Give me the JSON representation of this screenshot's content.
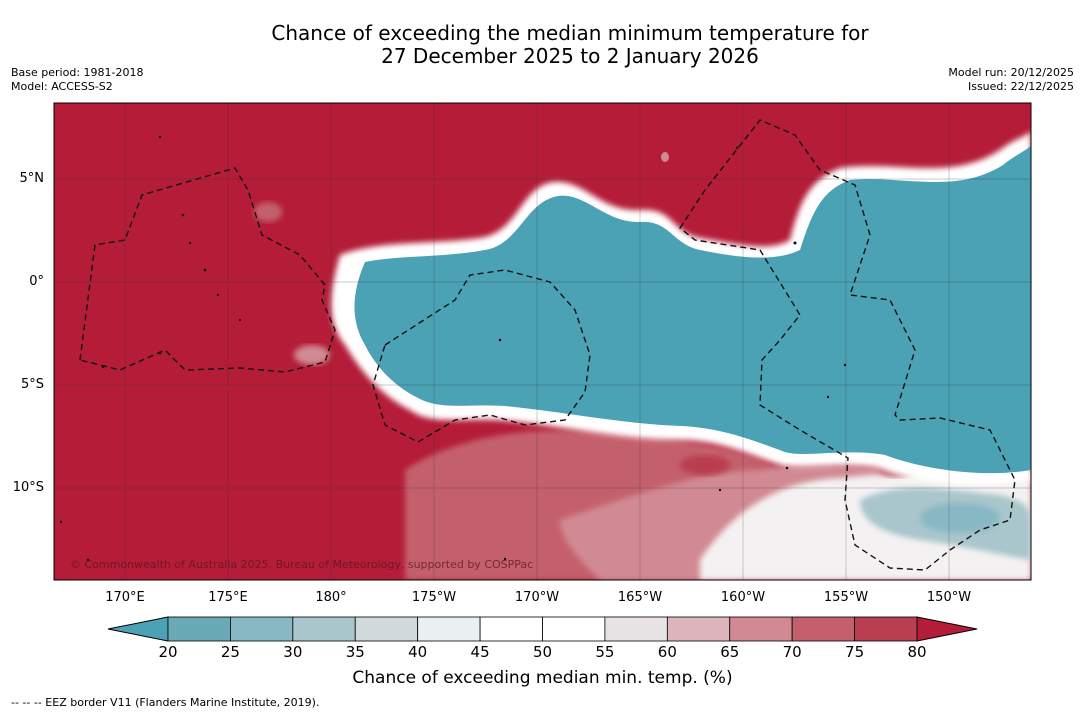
{
  "title_line1": "Chance of exceeding the median minimum temperature for",
  "title_line2": "27 December 2025 to 2 January 2026",
  "base_period": "Base period: 1981-2018",
  "model": "Model: ACCESS-S2",
  "model_run": "Model run: 20/12/2025",
  "issued": "Issued: 22/12/2025",
  "copyright": "© Commonwealth of Australia 2025, Bureau of Meteorology, supported by COSPPac",
  "footer_legend": "--  --  -- EEZ border V11 (Flanders Marine Institute, 2019).",
  "map": {
    "lat_labels": [
      "5°N",
      "0°",
      "5°S",
      "10°S"
    ],
    "lon_labels": [
      "170°E",
      "175°E",
      "180°",
      "175°W",
      "170°W",
      "165°W",
      "160°W",
      "155°W",
      "150°W"
    ]
  },
  "colorbar": {
    "title": "Chance of exceeding median min. temp. (%)",
    "ticks": [
      "20",
      "25",
      "30",
      "35",
      "40",
      "45",
      "50",
      "55",
      "60",
      "65",
      "70",
      "75",
      "80"
    ],
    "colors": [
      "#4aa2b4",
      "#6aaab6",
      "#88b8c4",
      "#a8c6cb",
      "#d0dadc",
      "#eaf0f2",
      "#ffffff",
      "#ffffff",
      "#e8e4e6",
      "#dcb4bc",
      "#d18a93",
      "#c4606c",
      "#b93e50",
      "#b41c38"
    ],
    "under_color": "#4aa2b4",
    "over_color": "#b41c38"
  },
  "colors": {
    "warm": "#b41c38",
    "cool": "#4aa2b4",
    "neutral": "#ffffff"
  }
}
